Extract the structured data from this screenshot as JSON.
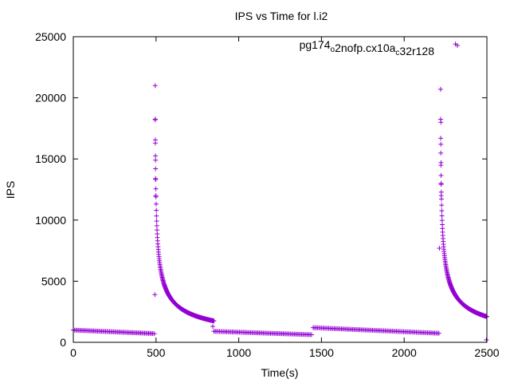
{
  "chart_data": {
    "type": "scatter",
    "title": "IPS vs Time for l.i2",
    "xlabel": "Time(s)",
    "ylabel": "IPS",
    "xlim": [
      0,
      2500
    ],
    "ylim": [
      0,
      25000
    ],
    "xticks": [
      0,
      500,
      1000,
      1500,
      2000,
      2500
    ],
    "yticks": [
      0,
      5000,
      10000,
      15000,
      20000,
      25000
    ],
    "grid": false,
    "legend_position": "top-right",
    "legend": {
      "parts": [
        {
          "text": "pg174",
          "sub": false
        },
        {
          "text": "o",
          "sub": true
        },
        {
          "text": "2nofp.cx10a",
          "sub": false
        },
        {
          "text": "c",
          "sub": true
        },
        {
          "text": "32r128",
          "sub": false
        }
      ]
    },
    "series": [
      {
        "color": "#9400d3",
        "marker": "plus",
        "segments": [
          {
            "kind": "linear",
            "x_start": 0,
            "x_end": 480,
            "y_start": 1000,
            "y_end": 720,
            "n": 60
          },
          {
            "kind": "decay",
            "x_start": 495,
            "x_end": 850,
            "y_peak": 21000,
            "y_end": 1750,
            "n": 170
          },
          {
            "kind": "linear",
            "x_start": 850,
            "x_end": 1440,
            "y_start": 900,
            "y_end": 620,
            "n": 70
          },
          {
            "kind": "linear",
            "x_start": 1450,
            "x_end": 2210,
            "y_start": 1200,
            "y_end": 740,
            "n": 90
          },
          {
            "kind": "decay",
            "x_start": 2220,
            "x_end": 2500,
            "y_peak": 20700,
            "y_end": 2100,
            "n": 150
          }
        ],
        "points": [
          {
            "x": 490,
            "y": 700
          },
          {
            "x": 493,
            "y": 3900
          },
          {
            "x": 495,
            "y": 18200
          },
          {
            "x": 496,
            "y": 16300
          },
          {
            "x": 497,
            "y": 14900
          },
          {
            "x": 497,
            "y": 13400
          },
          {
            "x": 498,
            "y": 12000
          },
          {
            "x": 843,
            "y": 1300
          },
          {
            "x": 2213,
            "y": 7700
          },
          {
            "x": 2222,
            "y": 18000
          },
          {
            "x": 2222,
            "y": 16200
          },
          {
            "x": 2223,
            "y": 14700
          },
          {
            "x": 2223,
            "y": 13000
          },
          {
            "x": 2224,
            "y": 12000
          },
          {
            "x": 2310,
            "y": 24400
          },
          {
            "x": 2497,
            "y": 200
          }
        ]
      }
    ]
  }
}
